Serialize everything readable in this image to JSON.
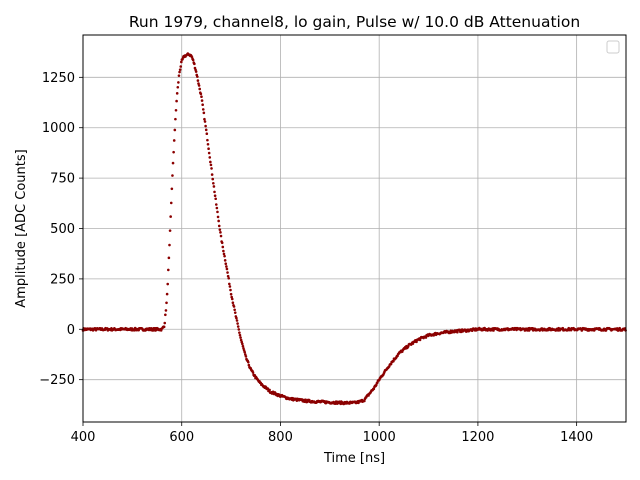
{
  "chart_data": {
    "type": "scatter",
    "title": "Run 1979, channel8, lo gain, Pulse w/ 10.0 dB Attenuation",
    "xlabel": "Time [ns]",
    "ylabel": "Amplitude [ADC Counts]",
    "xlim": [
      400,
      1500
    ],
    "ylim": [
      -460,
      1460
    ],
    "xticks": [
      400,
      600,
      800,
      1000,
      1200,
      1400
    ],
    "xtick_labels": [
      "400",
      "600",
      "800",
      "1000",
      "1200",
      "1400"
    ],
    "yticks": [
      -250,
      0,
      250,
      500,
      750,
      1000,
      1250
    ],
    "ytick_labels": [
      "−250",
      "0",
      "250",
      "500",
      "750",
      "1000",
      "1250"
    ],
    "grid": true,
    "legend": {
      "placement": "top-right",
      "entries": []
    },
    "colors": {
      "series": "#8b0000",
      "grid": "#b0b0b0",
      "axes": "#000000"
    },
    "series": [
      {
        "x": [
          400,
          450,
          500,
          540,
          560,
          565,
          570,
          575,
          580,
          585,
          590,
          595,
          600,
          605,
          610,
          615,
          620,
          625,
          630,
          640,
          650,
          660,
          670,
          680,
          690,
          700,
          710,
          720,
          730,
          740,
          750,
          760,
          770,
          780,
          800,
          820,
          850,
          880,
          900,
          930,
          950,
          960,
          970,
          980,
          990,
          1000,
          1020,
          1040,
          1060,
          1080,
          1100,
          1120,
          1150,
          1180,
          1200,
          1250,
          1300,
          1400,
          1500
        ],
        "y": [
          0,
          0,
          0,
          0,
          0,
          20,
          150,
          400,
          700,
          950,
          1150,
          1270,
          1330,
          1355,
          1360,
          1365,
          1355,
          1320,
          1270,
          1150,
          980,
          800,
          620,
          450,
          320,
          180,
          60,
          -50,
          -140,
          -200,
          -240,
          -270,
          -290,
          -310,
          -330,
          -345,
          -355,
          -360,
          -362,
          -365,
          -365,
          -360,
          -350,
          -320,
          -290,
          -250,
          -180,
          -120,
          -80,
          -50,
          -30,
          -20,
          -10,
          -5,
          0,
          0,
          0,
          0,
          0
        ]
      }
    ]
  }
}
